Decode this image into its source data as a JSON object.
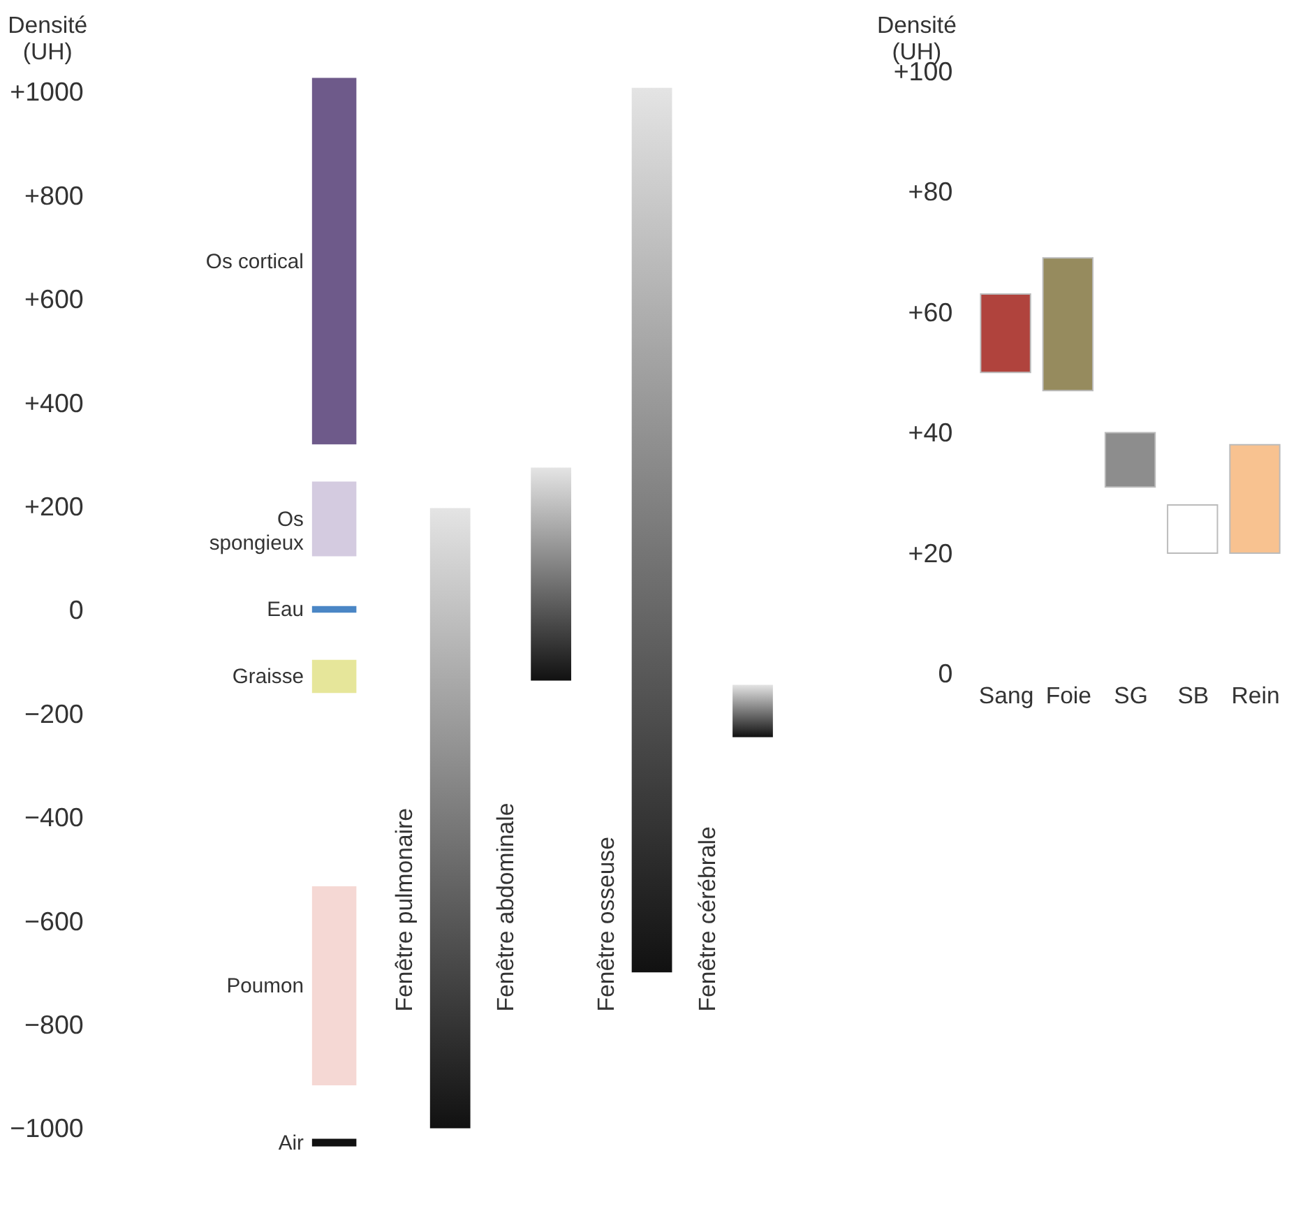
{
  "chart_data": [
    {
      "type": "bar",
      "ylabel": "Densité (UH)",
      "categories": [
        null,
        "Fenêtre pulmonaire",
        "Fenêtre abdominale",
        "Fenêtre osseuse",
        "Fenêtre cérébrale"
      ],
      "series": [
        {
          "name": "Os cortical",
          "color": "#6e5a8a",
          "base": [
            320,
            null,
            null,
            null,
            null
          ],
          "values": [
            707,
            null,
            null,
            null,
            null
          ]
        },
        {
          "name": "Os\nspongieux",
          "color": "#d4cbe0",
          "base": [
            104,
            null,
            null,
            null,
            null
          ],
          "values": [
            144,
            null,
            null,
            null,
            null
          ]
        },
        {
          "name": "Eau",
          "color": "#4a86c5",
          "base": [
            -5,
            null,
            null,
            null,
            null
          ],
          "values": [
            13,
            null,
            null,
            null,
            null
          ]
        },
        {
          "name": "Graisse",
          "color": "#e6e69a",
          "base": [
            -160,
            null,
            null,
            null,
            null
          ],
          "values": [
            64,
            null,
            null,
            null,
            null
          ]
        },
        {
          "name": "Poumon",
          "color": "#f5d8d4",
          "base": [
            -917,
            null,
            null,
            null,
            null
          ],
          "values": [
            384,
            null,
            null,
            null,
            null
          ]
        },
        {
          "name": "Air",
          "color": "#111111",
          "base": [
            -1035,
            null,
            null,
            null,
            null
          ],
          "values": [
            15,
            null,
            null,
            null,
            null
          ]
        },
        {
          "color": "#111111",
          "base": [
            null,
            -1000,
            -136,
            -699,
            -245
          ],
          "values": [
            null,
            1197,
            411,
            1707,
            101
          ]
        }
      ],
      "ylim": [
        -1040,
        1040
      ],
      "yticks": [
        {
          "value": 1000,
          "label": "+1000"
        },
        {
          "value": 800,
          "label": "+800"
        },
        {
          "value": 600,
          "label": "+600"
        },
        {
          "value": 400,
          "label": "+400"
        },
        {
          "value": 200,
          "label": "+200"
        },
        {
          "value": 0,
          "label": "0"
        },
        {
          "value": -200,
          "label": "−200"
        },
        {
          "value": -400,
          "label": "−400"
        },
        {
          "value": -600,
          "label": "−600"
        },
        {
          "value": -800,
          "label": "−800"
        },
        {
          "value": -1000,
          "label": "−1000"
        }
      ]
    },
    {
      "type": "bar",
      "ylabel": "Densité (UH)",
      "categories": [
        "Sang",
        "Foie",
        "SG",
        "SB",
        "Rein"
      ],
      "base": [
        50,
        47,
        31,
        20,
        20
      ],
      "values": [
        13,
        22,
        9,
        8,
        18
      ],
      "colors": [
        "#b0433d",
        "#968b5e",
        "#8d8d8d",
        "#ffffff",
        "#f8c290"
      ],
      "ylim": [
        0,
        100
      ],
      "yticks": [
        {
          "value": 100,
          "label": "+100"
        },
        {
          "value": 80,
          "label": "+80"
        },
        {
          "value": 60,
          "label": "+60"
        },
        {
          "value": 40,
          "label": "+40"
        },
        {
          "value": 20,
          "label": "+20"
        },
        {
          "value": 0,
          "label": "0"
        }
      ]
    }
  ]
}
